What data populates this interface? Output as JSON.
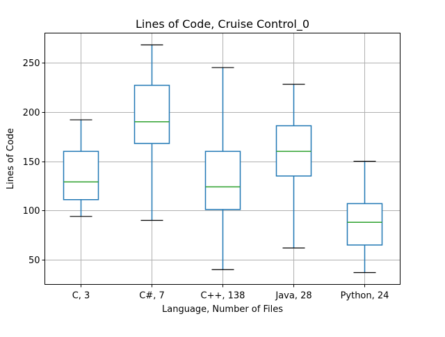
{
  "chart_data": {
    "type": "box",
    "title": "Lines of Code, Cruise Control_0",
    "xlabel": "Language, Number of Files",
    "ylabel": "Lines of Code",
    "categories": [
      "C, 3",
      "C#, 7",
      "C++, 138",
      "Java, 28",
      "Python, 24"
    ],
    "boxes": [
      {
        "whisker_low": 94,
        "q1": 111,
        "median": 129,
        "q3": 160,
        "whisker_high": 192
      },
      {
        "whisker_low": 90,
        "q1": 168,
        "median": 190,
        "q3": 227,
        "whisker_high": 268
      },
      {
        "whisker_low": 40,
        "q1": 101,
        "median": 124,
        "q3": 160,
        "whisker_high": 245
      },
      {
        "whisker_low": 62,
        "q1": 135,
        "median": 160,
        "q3": 186,
        "whisker_high": 228
      },
      {
        "whisker_low": 37,
        "q1": 65,
        "median": 88,
        "q3": 107,
        "whisker_high": 150
      }
    ],
    "ylim": [
      25,
      280
    ],
    "yticks": [
      50,
      100,
      150,
      200,
      250
    ],
    "grid": true,
    "colors": {
      "box": "#1f77b4",
      "median": "#2ca02c",
      "cap": "#000000",
      "grid": "#b0b0b0"
    }
  }
}
